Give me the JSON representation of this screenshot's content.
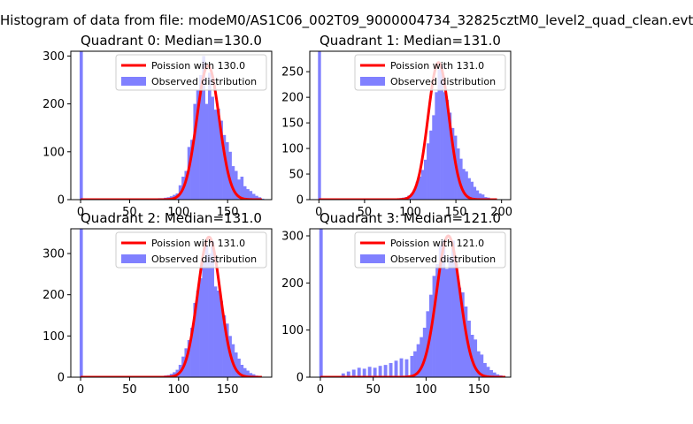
{
  "suptitle": "Histogram of data from file: modeM0/AS1C06_002T09_9000004734_32825cztM0_level2_quad_clean.evt",
  "colors": {
    "line": "#ff0000",
    "bar": "#8080ff",
    "axis": "#000000"
  },
  "chart_data": [
    {
      "type": "bar",
      "title": "Quadrant 0: Median=130.0",
      "xlim": [
        -10,
        195
      ],
      "ylim": [
        0,
        310
      ],
      "xticks": [
        0,
        50,
        100,
        150
      ],
      "yticks": [
        0,
        100,
        200,
        300
      ],
      "legend": {
        "placement": "top-right",
        "line_label": "Poission with 130.0",
        "bar_label": "Observed distribution"
      },
      "bins_x": [
        -1,
        76,
        79,
        82,
        85,
        88,
        91,
        94,
        97,
        100,
        103,
        106,
        109,
        112,
        115,
        118,
        121,
        124,
        127,
        130,
        133,
        136,
        139,
        142,
        145,
        148,
        151,
        154,
        157,
        160,
        163,
        166,
        169,
        172,
        175,
        178,
        181,
        184
      ],
      "bins_y": [
        310,
        2,
        3,
        3,
        4,
        5,
        7,
        10,
        13,
        30,
        48,
        60,
        110,
        125,
        200,
        230,
        260,
        300,
        200,
        265,
        215,
        188,
        190,
        165,
        135,
        120,
        100,
        70,
        60,
        42,
        48,
        28,
        22,
        18,
        12,
        8,
        5,
        2
      ],
      "poisson_mean": 130.0,
      "poisson_peak": 280,
      "line_x_range": [
        0,
        185
      ]
    },
    {
      "type": "bar",
      "title": "Quadrant 1: Median=131.0",
      "xlim": [
        -10,
        210
      ],
      "ylim": [
        0,
        290
      ],
      "xticks": [
        0,
        50,
        100,
        150,
        200
      ],
      "yticks": [
        0,
        50,
        100,
        150,
        200,
        250
      ],
      "legend": {
        "placement": "top-right",
        "line_label": "Poission with 131.0",
        "bar_label": "Observed distribution"
      },
      "bins_x": [
        -1,
        85,
        88,
        91,
        94,
        97,
        100,
        103,
        106,
        109,
        112,
        115,
        118,
        121,
        124,
        127,
        130,
        133,
        136,
        139,
        142,
        145,
        148,
        151,
        154,
        157,
        160,
        163,
        166,
        169,
        172,
        175,
        178,
        181,
        184,
        187,
        190
      ],
      "bins_y": [
        290,
        2,
        3,
        4,
        5,
        8,
        12,
        20,
        35,
        45,
        58,
        78,
        110,
        135,
        165,
        210,
        255,
        262,
        210,
        195,
        170,
        140,
        125,
        100,
        80,
        60,
        55,
        42,
        35,
        25,
        18,
        12,
        10,
        5,
        4,
        2,
        1
      ],
      "poisson_mean": 131.0,
      "poisson_peak": 268,
      "line_x_range": [
        0,
        195
      ]
    },
    {
      "type": "bar",
      "title": "Quadrant 2: Median=131.0",
      "xlim": [
        -10,
        195
      ],
      "ylim": [
        0,
        360
      ],
      "xticks": [
        0,
        50,
        100,
        150
      ],
      "yticks": [
        0,
        100,
        200,
        300
      ],
      "legend": {
        "placement": "top-right",
        "line_label": "Poission with 131.0",
        "bar_label": "Observed distribution"
      },
      "bins_x": [
        -1,
        70,
        75,
        80,
        85,
        88,
        91,
        94,
        97,
        100,
        103,
        106,
        109,
        112,
        115,
        118,
        121,
        124,
        127,
        130,
        133,
        136,
        139,
        142,
        145,
        148,
        151,
        154,
        157,
        160,
        163,
        166,
        169,
        172,
        175,
        178,
        181,
        184
      ],
      "bins_y": [
        360,
        1,
        2,
        3,
        4,
        5,
        8,
        12,
        18,
        30,
        50,
        70,
        90,
        120,
        180,
        210,
        240,
        280,
        320,
        300,
        330,
        220,
        210,
        185,
        150,
        130,
        100,
        80,
        60,
        45,
        30,
        22,
        16,
        10,
        7,
        4,
        2,
        1
      ],
      "poisson_mean": 131.0,
      "poisson_peak": 340,
      "line_x_range": [
        0,
        185
      ]
    },
    {
      "type": "bar",
      "title": "Quadrant 3: Median=121.0",
      "xlim": [
        -10,
        180
      ],
      "ylim": [
        0,
        315
      ],
      "xticks": [
        0,
        50,
        100,
        150
      ],
      "yticks": [
        0,
        100,
        200,
        300
      ],
      "legend": {
        "placement": "top-right",
        "line_label": "Poission with 121.0",
        "bar_label": "Observed distribution"
      },
      "bins_x": [
        -1,
        20,
        25,
        30,
        35,
        40,
        45,
        50,
        55,
        60,
        65,
        70,
        75,
        80,
        85,
        88,
        91,
        94,
        97,
        100,
        103,
        106,
        109,
        112,
        115,
        118,
        121,
        124,
        127,
        130,
        133,
        136,
        139,
        142,
        145,
        148,
        151,
        154,
        157,
        160,
        163,
        166,
        169,
        172,
        175
      ],
      "bins_y": [
        315,
        8,
        12,
        16,
        20,
        18,
        22,
        20,
        24,
        26,
        30,
        35,
        40,
        38,
        45,
        55,
        70,
        85,
        105,
        140,
        175,
        215,
        240,
        280,
        290,
        230,
        255,
        290,
        240,
        190,
        180,
        150,
        120,
        90,
        80,
        55,
        48,
        30,
        22,
        15,
        10,
        6,
        4,
        2,
        1
      ],
      "poisson_mean": 121.0,
      "poisson_peak": 300,
      "line_x_range": [
        0,
        175
      ]
    }
  ]
}
